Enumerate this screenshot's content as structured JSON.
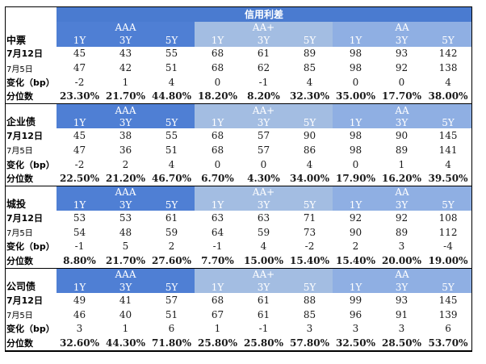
{
  "title": "信用利差",
  "groups": [
    "AAA",
    "AA+",
    "AA"
  ],
  "tenors": [
    "1Y",
    "3Y",
    "5Y"
  ],
  "sections": [
    {
      "name": "中票",
      "rows": [
        {
          "label": "7月12日",
          "values": [
            "45",
            "43",
            "55",
            "68",
            "61",
            "89",
            "98",
            "93",
            "142"
          ]
        },
        {
          "label": "7月5日",
          "values": [
            "47",
            "42",
            "51",
            "68",
            "62",
            "85",
            "98",
            "92",
            "138"
          ]
        },
        {
          "label": "变化（bp）",
          "values": [
            "-2",
            "1",
            "4",
            "0",
            "-1",
            "4",
            "0",
            "0",
            "4"
          ]
        },
        {
          "label": "分位数",
          "values": [
            "23.30%",
            "21.70%",
            "44.80%",
            "18.20%",
            "8.20%",
            "32.30%",
            "35.00%",
            "17.70%",
            "38.00%"
          ]
        }
      ]
    },
    {
      "name": "企业债",
      "rows": [
        {
          "label": "7月12日",
          "values": [
            "45",
            "38",
            "55",
            "68",
            "57",
            "90",
            "98",
            "90",
            "145"
          ]
        },
        {
          "label": "7月5日",
          "values": [
            "47",
            "36",
            "51",
            "68",
            "57",
            "86",
            "98",
            "89",
            "141"
          ]
        },
        {
          "label": "变化（bp）",
          "values": [
            "-2",
            "2",
            "4",
            "0",
            "0",
            "4",
            "0",
            "1",
            "4"
          ]
        },
        {
          "label": "分位数",
          "values": [
            "22.50%",
            "21.20%",
            "46.70%",
            "6.70%",
            "4.30%",
            "34.00%",
            "17.90%",
            "16.20%",
            "39.50%"
          ]
        }
      ]
    },
    {
      "name": "城投",
      "rows": [
        {
          "label": "7月12日",
          "values": [
            "53",
            "53",
            "61",
            "63",
            "63",
            "71",
            "92",
            "92",
            "108"
          ]
        },
        {
          "label": "7月5日",
          "values": [
            "54",
            "48",
            "59",
            "64",
            "59",
            "73",
            "90",
            "89",
            "112"
          ]
        },
        {
          "label": "变化（bp）",
          "values": [
            "-1",
            "5",
            "2",
            "-1",
            "4",
            "-2",
            "2",
            "3",
            "-4"
          ]
        },
        {
          "label": "分位数",
          "values": [
            "8.80%",
            "21.70%",
            "27.60%",
            "7.70%",
            "15.00%",
            "15.40%",
            "15.40%",
            "20.00%",
            "19.00%"
          ]
        }
      ]
    },
    {
      "name": "公司债",
      "rows": [
        {
          "label": "7月12日",
          "values": [
            "49",
            "41",
            "57",
            "68",
            "61",
            "88",
            "99",
            "93",
            "145"
          ]
        },
        {
          "label": "7月5日",
          "values": [
            "46",
            "40",
            "51",
            "67",
            "61",
            "85",
            "96",
            "91",
            "139"
          ]
        },
        {
          "label": "变化（bp）",
          "values": [
            "3",
            "1",
            "6",
            "1",
            "-1",
            "3",
            "3",
            "3",
            "6"
          ]
        },
        {
          "label": "分位数",
          "values": [
            "32.60%",
            "44.30%",
            "71.80%",
            "25.80%",
            "25.80%",
            "57.80%",
            "32.50%",
            "28.50%",
            "53.70%"
          ]
        }
      ]
    }
  ]
}
